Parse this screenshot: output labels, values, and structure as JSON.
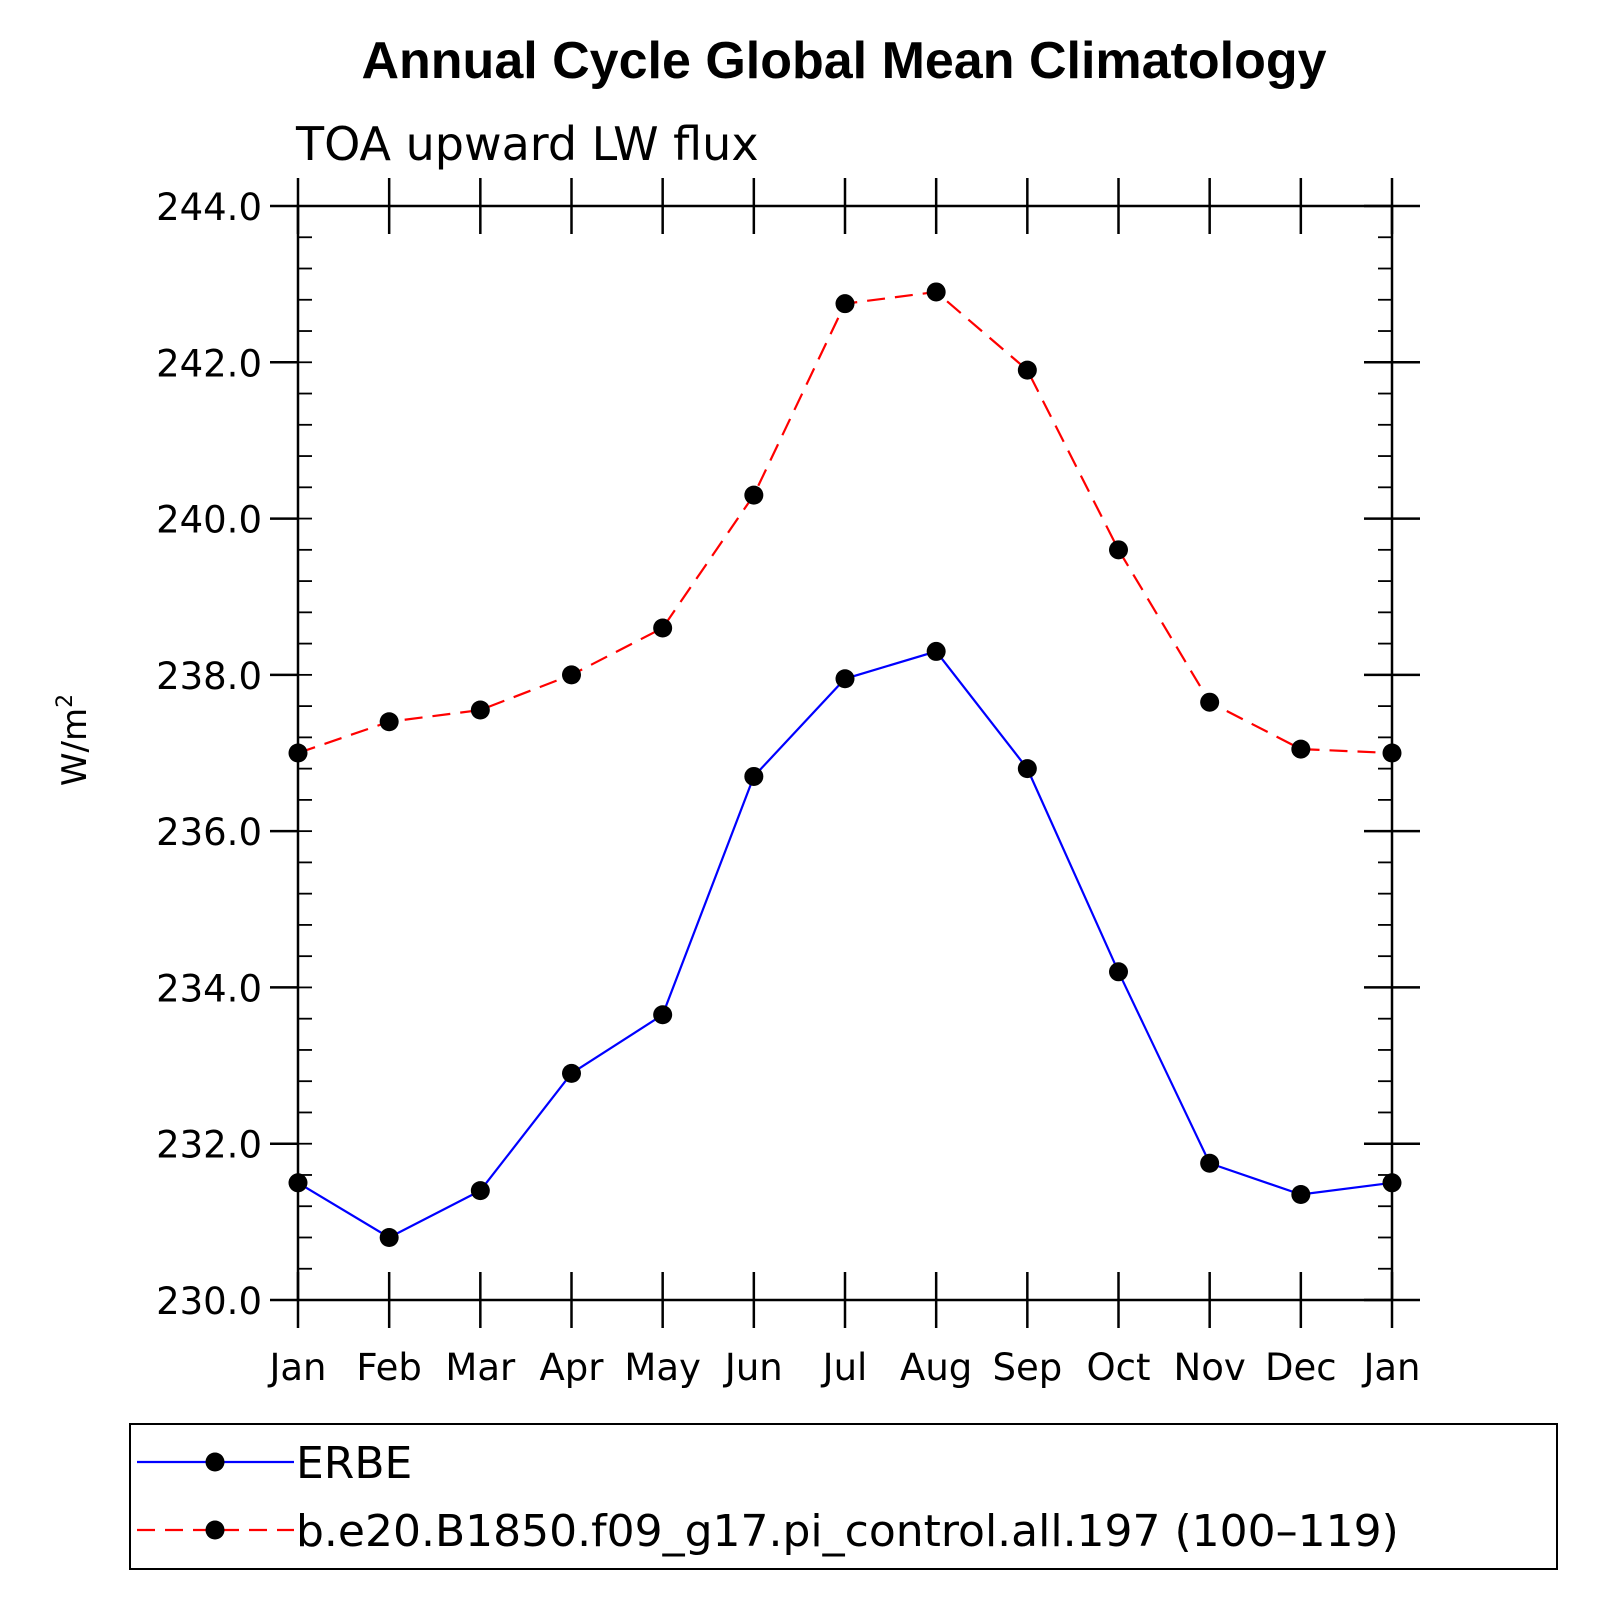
{
  "chart_data": {
    "type": "line",
    "title": "Annual Cycle Global Mean Climatology",
    "subtitle": "TOA upward LW flux",
    "ylabel": "W/m",
    "ylabel_superscript": "2",
    "ylim": [
      230.0,
      244.0
    ],
    "y_major_ticks": [
      "230.0",
      "232.0",
      "234.0",
      "236.0",
      "238.0",
      "240.0",
      "242.0",
      "244.0"
    ],
    "y_tick_values": [
      230,
      232,
      234,
      236,
      238,
      240,
      242,
      244
    ],
    "categories": [
      "Jan",
      "Feb",
      "Mar",
      "Apr",
      "May",
      "Jun",
      "Jul",
      "Aug",
      "Sep",
      "Oct",
      "Nov",
      "Dec",
      "Jan"
    ],
    "grid": false,
    "legend_position": "bottom",
    "series": [
      {
        "name": "ERBE",
        "color": "#0000ff",
        "line_style": "solid",
        "marker": "filled-circle",
        "values": [
          231.5,
          230.8,
          231.4,
          232.9,
          233.65,
          236.7,
          237.95,
          238.3,
          236.8,
          234.2,
          231.75,
          231.35,
          231.5
        ]
      },
      {
        "name": "b.e20.B1850.f09_g17.pi_control.all.197 (100–119)",
        "color": "#ff0000",
        "line_style": "dashed",
        "marker": "filled-circle",
        "values": [
          237.0,
          237.4,
          237.55,
          238.0,
          238.6,
          240.3,
          242.75,
          242.9,
          241.9,
          239.6,
          237.65,
          237.05,
          237.0
        ]
      }
    ]
  }
}
